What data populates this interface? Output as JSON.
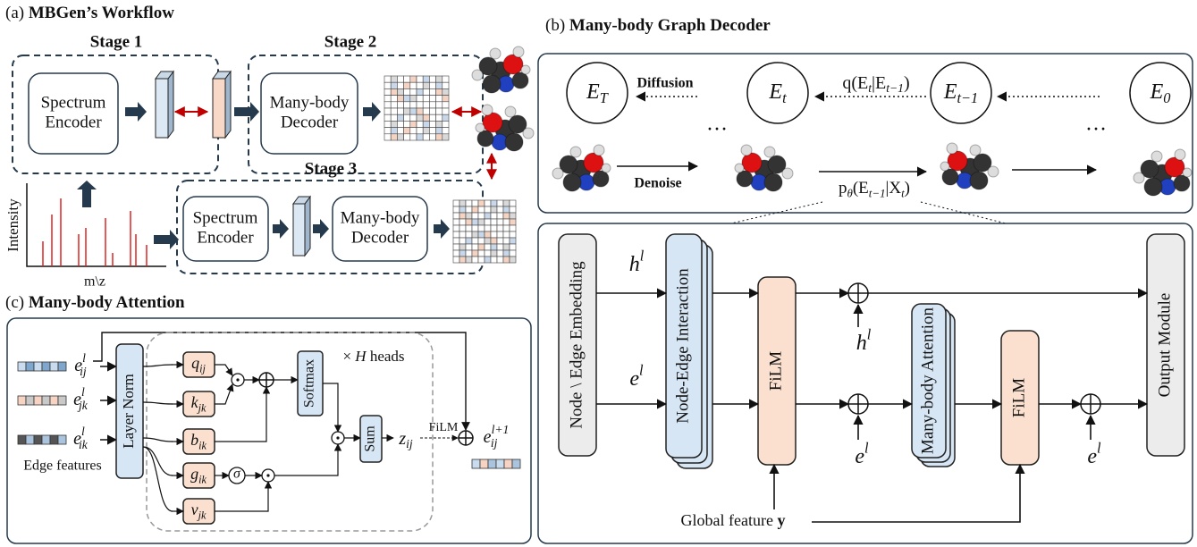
{
  "panel_a": {
    "label": "(a)",
    "title": "MBGen’s Workflow",
    "stages": [
      "Stage 1",
      "Stage 2",
      "Stage 3"
    ],
    "spectrum_encoder": [
      "Spectrum",
      "Encoder"
    ],
    "many_body_decoder": [
      "Many-body",
      "Decoder"
    ],
    "y_axis": "Intensity",
    "x_axis": "m\\z"
  },
  "panel_b": {
    "label": "(b)",
    "title": "Many-body Graph Decoder",
    "states": [
      [
        {
          "t": "E"
        },
        {
          "sub": "T"
        }
      ],
      [
        {
          "t": "E"
        },
        {
          "sub": "t"
        }
      ],
      [
        {
          "t": "E"
        },
        {
          "sub": "t−1"
        }
      ],
      [
        {
          "t": "E"
        },
        {
          "sub": "0"
        }
      ]
    ],
    "diffusion": "Diffusion",
    "denoise": "Denoise",
    "ellipsis": "…",
    "forward": [
      {
        "t": "q(E"
      },
      {
        "sub": "t"
      },
      {
        "t": "|E"
      },
      {
        "sub": "t−1"
      },
      {
        "t": ")"
      }
    ],
    "reverse": [
      {
        "t": "p"
      },
      {
        "sub": "θ"
      },
      {
        "t": "(E"
      },
      {
        "sub": "t−1"
      },
      {
        "t": "|X"
      },
      {
        "sub": "t"
      },
      {
        "t": ")"
      }
    ],
    "embedding": "Node \\ Edge Embedding",
    "interaction": "Node-Edge Interaction",
    "film": "FiLM",
    "attention": "Many-body Attention",
    "output": "Output Module",
    "h": [
      {
        "t": "h"
      },
      {
        "sup": "l"
      }
    ],
    "e": [
      {
        "t": "e"
      },
      {
        "sup": "l"
      }
    ],
    "global": [
      {
        "t": "Global feature "
      },
      {
        "b": "y"
      }
    ]
  },
  "panel_c": {
    "label": "(c)",
    "title": "Many-body Attention",
    "inputs": [
      [
        {
          "t": "e"
        },
        {
          "sub": "ij",
          "sup": "l"
        }
      ],
      [
        {
          "t": "e"
        },
        {
          "sub": "jk",
          "sup": "l"
        }
      ],
      [
        {
          "t": "e"
        },
        {
          "sub": "ik",
          "sup": "l"
        }
      ]
    ],
    "edge_features": "Edge features",
    "layer_norm": "Layer Norm",
    "projections": [
      [
        {
          "t": "q"
        },
        {
          "sub": "ij"
        }
      ],
      [
        {
          "t": "k"
        },
        {
          "sub": "jk"
        }
      ],
      [
        {
          "t": "b"
        },
        {
          "sub": "ik"
        }
      ],
      [
        {
          "t": "g"
        },
        {
          "sub": "ik"
        }
      ],
      [
        {
          "t": "v"
        },
        {
          "sub": "jk"
        }
      ]
    ],
    "sigma": "σ",
    "softmax": "Softmax",
    "sum": "Sum",
    "z": [
      {
        "t": "z"
      },
      {
        "sub": "ij"
      }
    ],
    "film": "FiLM",
    "output": [
      {
        "t": "e"
      },
      {
        "sub": "ij",
        "sup": "l+1"
      }
    ],
    "heads": [
      {
        "t": "× "
      },
      {
        "i": "H"
      },
      {
        "t": " heads"
      }
    ]
  }
}
